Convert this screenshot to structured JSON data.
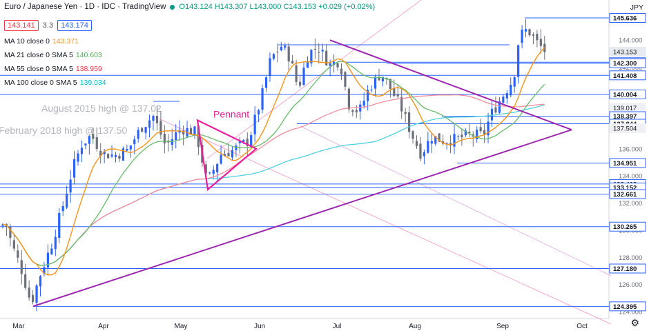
{
  "header": {
    "title": "Euro / Japanese Yen · 1D · IDC · TradingView",
    "ohlc": "O143.124 H143.307 L143.000 C143.153 +0.029 (+0.02%)",
    "bid": "143.141",
    "spread": "3.3",
    "ask": "143.174",
    "currency": "JPY"
  },
  "indicators": [
    {
      "label": "MA 10 close 0",
      "value": "143.371",
      "color": "#f7931a"
    },
    {
      "label": "MA 21 close 0 SMA 5",
      "value": "140.603",
      "color": "#4caf50"
    },
    {
      "label": "MA 55 close 0 SMA 5",
      "value": "138.959",
      "color": "#f23645"
    },
    {
      "label": "MA 100 close 0 SMA 5",
      "value": "139.034",
      "color": "#00bcd4"
    }
  ],
  "chart_data": {
    "type": "candlestick",
    "x_axis": {
      "ticks": [
        "Mar",
        "Apr",
        "May",
        "Jun",
        "Jul",
        "Aug",
        "Sep",
        "Oct"
      ]
    },
    "y_axis": {
      "range": [
        123.6,
        146.5
      ],
      "ticks": [
        124.0,
        126.0,
        128.0,
        130.0,
        132.0,
        134.0,
        136.0,
        138.0,
        140.0,
        142.0,
        144.0
      ]
    },
    "annotations": [
      {
        "text": "August 2015 high @ 137.02"
      },
      {
        "text": "February 2018 high @ 137.50"
      },
      {
        "text": "Pennant"
      }
    ],
    "levels": [
      145.636,
      142.372,
      142.3,
      141.408,
      140.004,
      138.397,
      137.844,
      134.951,
      133.403,
      133.152,
      132.661,
      130.265,
      127.18,
      124.395
    ],
    "price_labels": [
      {
        "value": "145.636",
        "style": "line"
      },
      {
        "value": "143.153",
        "style": "current"
      },
      {
        "value": "142.372",
        "style": "line"
      },
      {
        "value": "142.300",
        "style": "line"
      },
      {
        "value": "141.408",
        "style": "line"
      },
      {
        "value": "140.004",
        "style": "line"
      },
      {
        "value": "139.017",
        "style": "ma"
      },
      {
        "value": "138.397",
        "style": "line"
      },
      {
        "value": "137.844",
        "style": "line"
      },
      {
        "value": "137.504",
        "style": "ma"
      },
      {
        "value": "134.951",
        "style": "line"
      },
      {
        "value": "133.403",
        "style": "line"
      },
      {
        "value": "133.152",
        "style": "line"
      },
      {
        "value": "132.661",
        "style": "line"
      },
      {
        "value": "130.265",
        "style": "line"
      },
      {
        "value": "127.180",
        "style": "line"
      },
      {
        "value": "124.395",
        "style": "line"
      }
    ],
    "colors": {
      "up": "#2962ff",
      "down": "#6b6f7a",
      "level": "#2962ff",
      "trend": "#9c27b0",
      "pennant": "#e91e9b",
      "channel": "#f8a8d0"
    },
    "grid": false
  }
}
